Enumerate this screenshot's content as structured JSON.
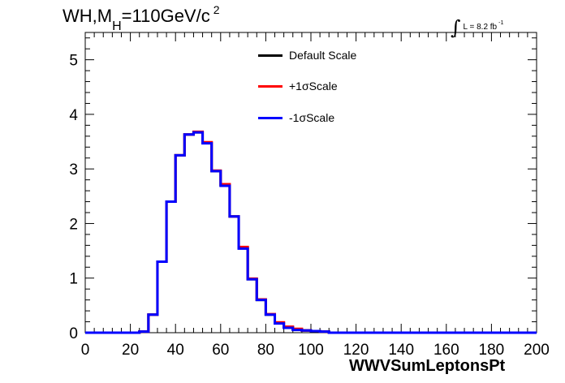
{
  "title": {
    "prefix": "WH,M",
    "subscript": "H",
    "suffix": "=110GeV/c",
    "superscript": "2"
  },
  "luminosity": {
    "integral_symbol": "∫",
    "text": "L = 8.2 fb",
    "superscript": "-1"
  },
  "chart_data": {
    "type": "line",
    "style": "step-histogram",
    "xlabel": "WWVSumLeptonsPt",
    "ylabel": "",
    "xlim": [
      0,
      200
    ],
    "ylim": [
      0,
      5.5
    ],
    "xticks": [
      0,
      20,
      40,
      60,
      80,
      100,
      120,
      140,
      160,
      180,
      200
    ],
    "yticks": [
      0,
      1,
      2,
      3,
      4,
      5
    ],
    "grid": false,
    "legend_position": "top-center",
    "bin_edges": [
      0,
      4,
      8,
      12,
      16,
      20,
      24,
      28,
      32,
      36,
      40,
      44,
      48,
      52,
      56,
      60,
      64,
      68,
      72,
      76,
      80,
      84,
      88,
      92,
      96,
      100,
      104,
      108,
      112,
      116,
      120,
      124,
      128,
      132,
      136,
      140,
      144,
      148,
      152,
      156,
      160,
      164,
      168,
      172,
      176,
      180,
      184,
      188,
      192,
      196,
      200
    ],
    "series": [
      {
        "name": "Default Scale",
        "color": "#000000",
        "values": [
          0,
          0,
          0,
          0,
          0,
          0,
          0.02,
          0.33,
          1.3,
          2.4,
          3.25,
          3.63,
          3.67,
          3.48,
          2.96,
          2.7,
          2.13,
          1.55,
          0.98,
          0.6,
          0.33,
          0.18,
          0.1,
          0.06,
          0.04,
          0.03,
          0.02,
          0,
          0,
          0,
          0,
          0,
          0,
          0,
          0,
          0,
          0,
          0,
          0,
          0,
          0,
          0,
          0,
          0,
          0,
          0,
          0,
          0,
          0,
          0
        ]
      },
      {
        "name": "+1σScale",
        "color": "#ff0000",
        "values": [
          0,
          0,
          0,
          0,
          0,
          0,
          0.02,
          0.33,
          1.3,
          2.4,
          3.25,
          3.63,
          3.68,
          3.49,
          2.97,
          2.72,
          2.13,
          1.57,
          0.99,
          0.61,
          0.34,
          0.19,
          0.11,
          0.07,
          0.04,
          0.03,
          0.02,
          0,
          0,
          0,
          0,
          0,
          0,
          0,
          0,
          0,
          0,
          0,
          0,
          0,
          0,
          0,
          0,
          0,
          0,
          0,
          0,
          0,
          0,
          0
        ]
      },
      {
        "name": "-1σScale",
        "color": "#0000ff",
        "values": [
          0,
          0,
          0,
          0,
          0,
          0,
          0.02,
          0.33,
          1.3,
          2.4,
          3.25,
          3.63,
          3.67,
          3.47,
          2.96,
          2.69,
          2.13,
          1.54,
          0.98,
          0.6,
          0.33,
          0.17,
          0.09,
          0.05,
          0.04,
          0.03,
          0.02,
          0,
          0,
          0,
          0,
          0,
          0,
          0,
          0,
          0,
          0,
          0,
          0,
          0,
          0,
          0,
          0,
          0,
          0,
          0,
          0,
          0,
          0,
          0
        ]
      }
    ]
  }
}
